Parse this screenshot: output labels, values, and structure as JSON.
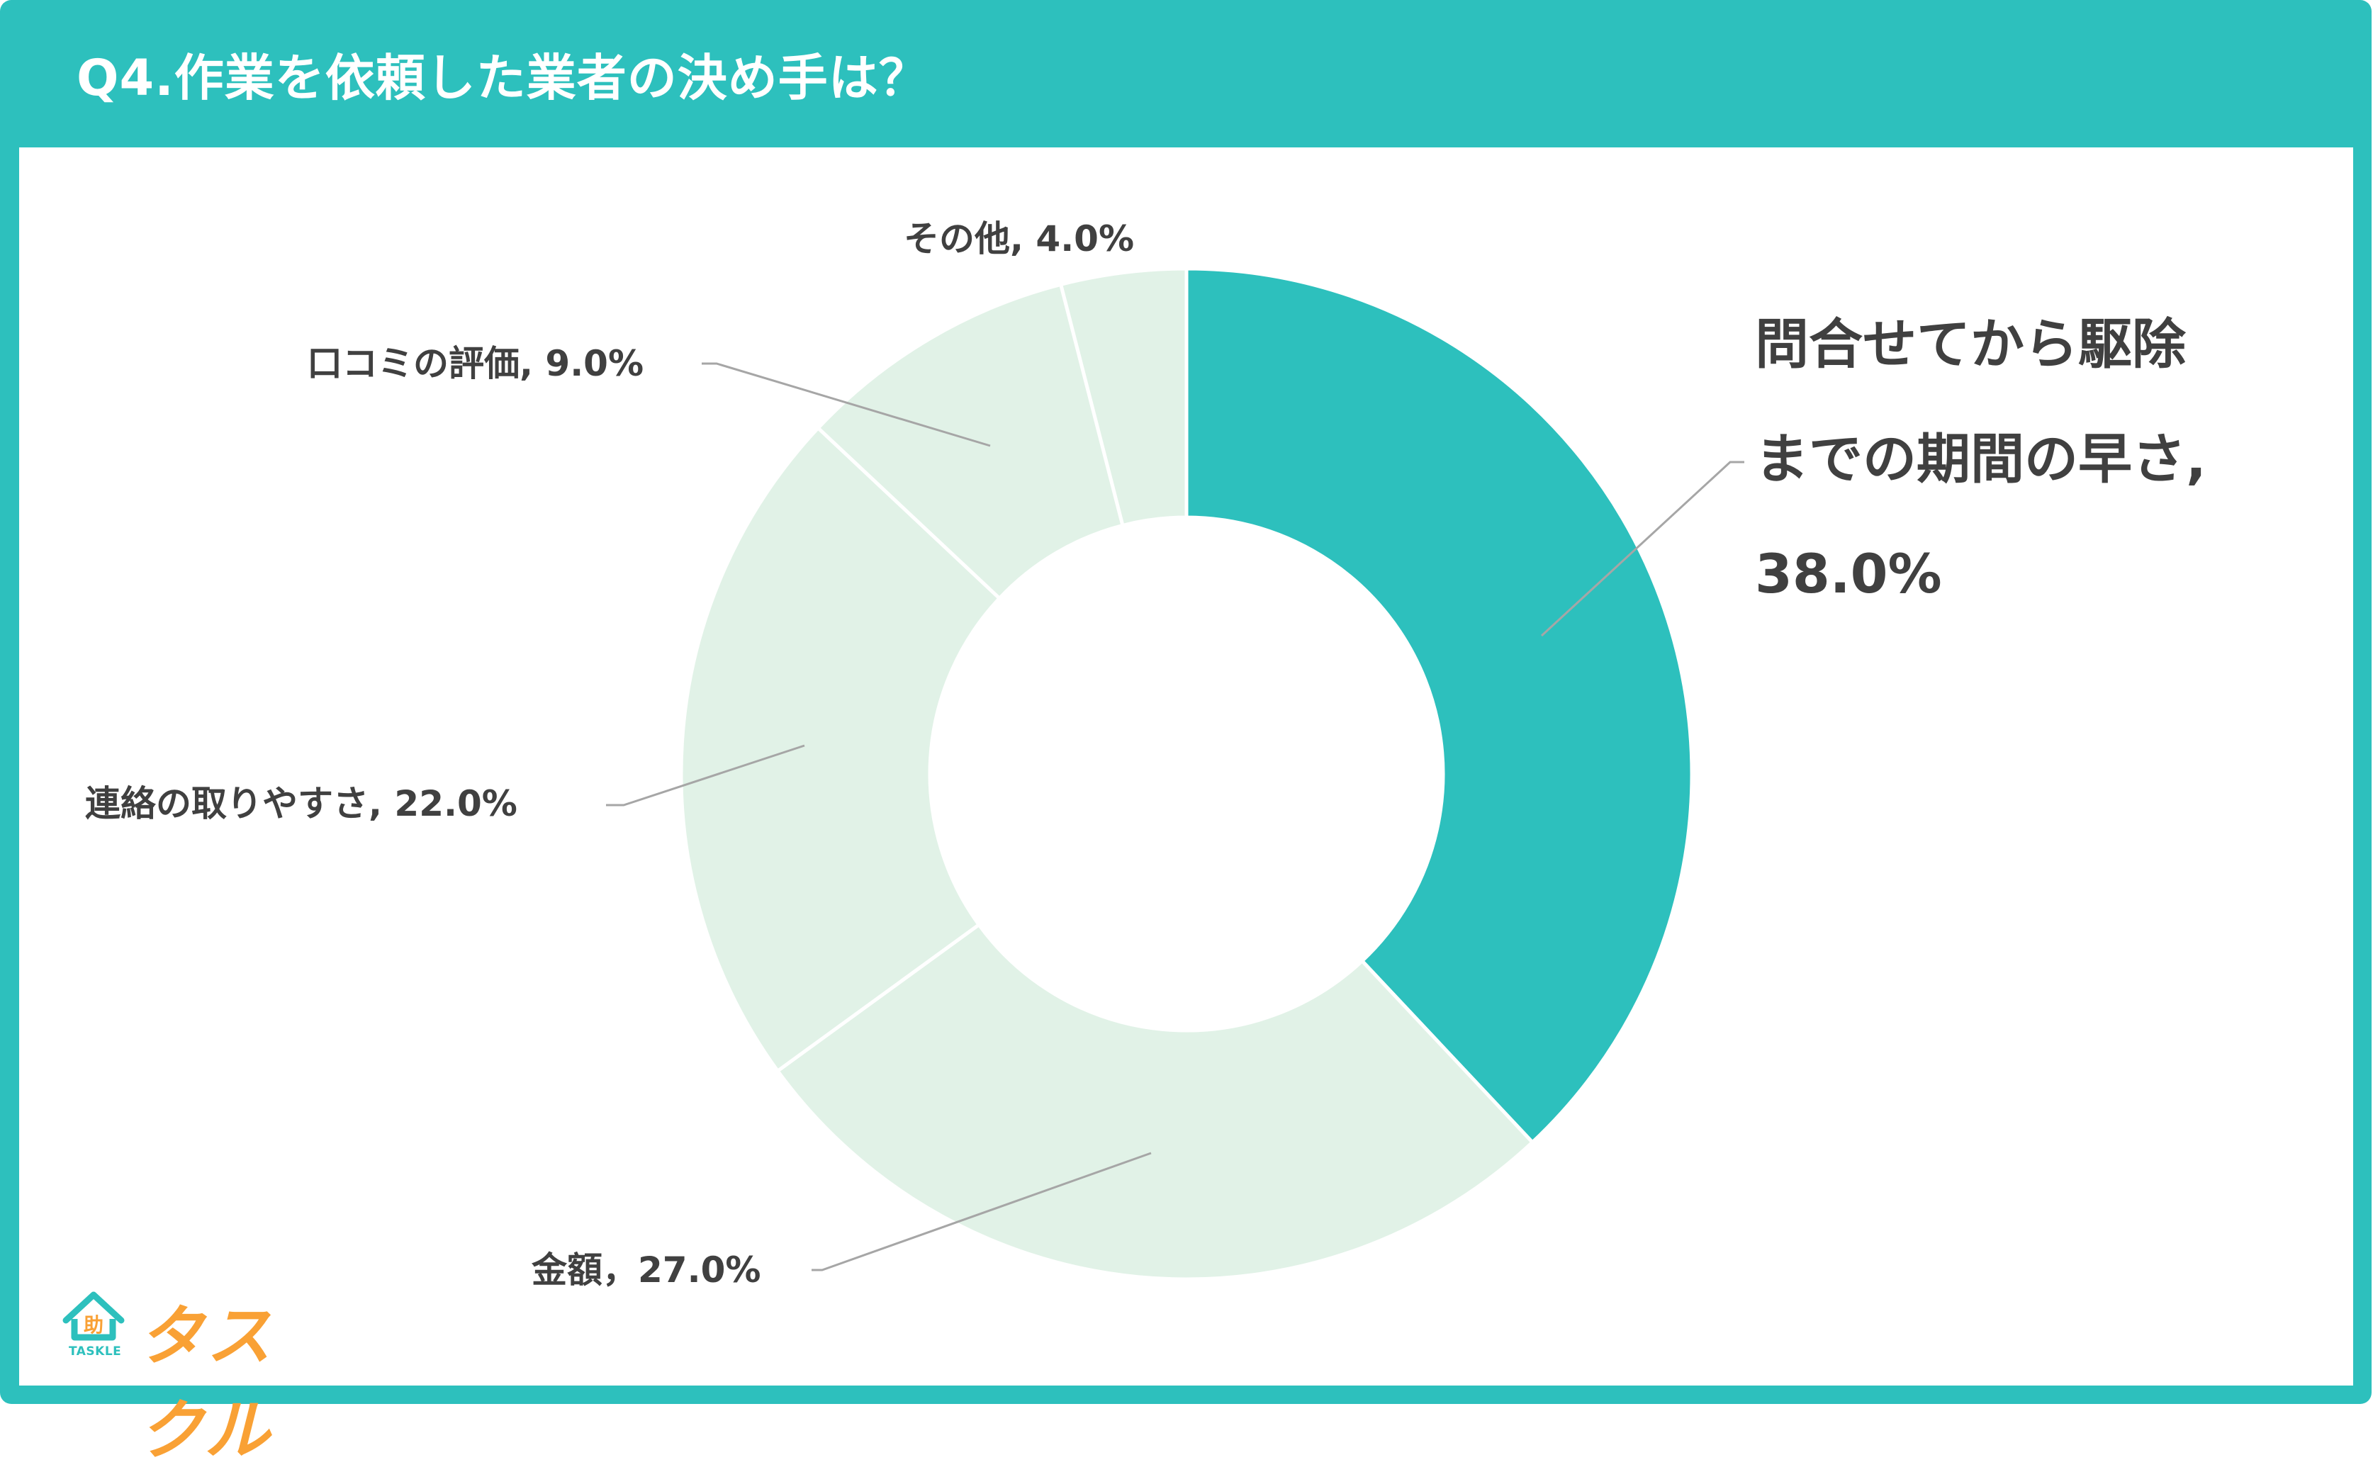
{
  "colors": {
    "accent": "#2DC0BD",
    "segment_light": "#E1F2E7",
    "label_text": "#404040",
    "leader_line": "#A6A6A6",
    "logo_orange": "#F9A135"
  },
  "header": {
    "title": "Q4.作業を依頼した業者の決め手は？"
  },
  "chart_data": {
    "type": "pie",
    "variant": "donut",
    "title": "Q4.作業を依頼した業者の決め手は？",
    "categories": [
      "問合せてから駆除までの期間の早さ",
      "金額",
      "連絡の取りやすさ",
      "口コミの評価",
      "その他"
    ],
    "values": [
      38.0,
      27.0,
      22.0,
      9.0,
      4.0
    ],
    "unit": "%",
    "start_angle": "12 o'clock, clockwise",
    "highlighted": "問合せてから駆除までの期間の早さ",
    "legend": "none (data labels with leader lines)"
  },
  "labels": {
    "speed_line1": "問合せてから駆除",
    "speed_line2": "までの期間の早さ,",
    "speed_line3": "38.0%",
    "price": "金額，27.0%",
    "contact": "連絡の取りやすさ, 22.0%",
    "reviews": "口コミの評価, 9.0%",
    "other": "その他, 4.0%"
  },
  "logo": {
    "brand": "タスクル",
    "sub": "TASKLE",
    "icon_glyph": "助"
  }
}
